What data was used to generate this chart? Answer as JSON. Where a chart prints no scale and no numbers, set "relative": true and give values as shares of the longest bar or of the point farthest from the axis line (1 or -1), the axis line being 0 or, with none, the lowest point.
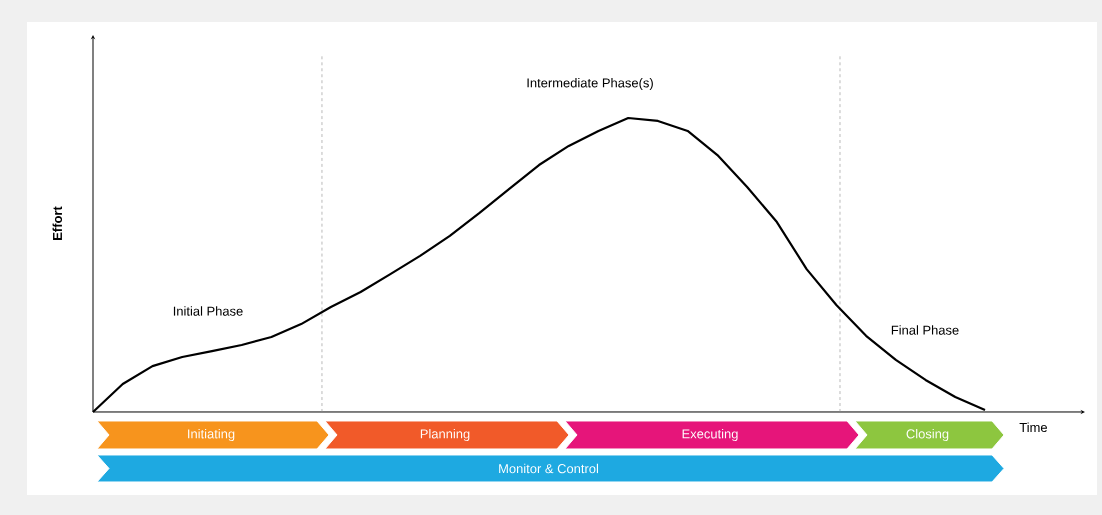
{
  "chart_data": [
    {
      "type": "line",
      "relative": true,
      "color": "#000000",
      "xlabel": "Time",
      "ylabel": "Effort",
      "categories": [
        null,
        null,
        null,
        null,
        null,
        null,
        null,
        null,
        null,
        null,
        null,
        null,
        null,
        null,
        null,
        null,
        null,
        null,
        null,
        null,
        null,
        null,
        null,
        null,
        null,
        null,
        null,
        null,
        null,
        null,
        null
      ],
      "values": [
        0,
        0.095,
        0.156,
        0.187,
        0.207,
        0.228,
        0.255,
        0.299,
        0.357,
        0.408,
        0.469,
        0.531,
        0.599,
        0.677,
        0.759,
        0.84,
        0.905,
        0.956,
        1,
        0.99,
        0.956,
        0.874,
        0.765,
        0.646,
        0.486,
        0.364,
        0.259,
        0.177,
        0.109,
        0.051,
        0.007
      ],
      "annotations": [
        "Initial Phase",
        "Intermediate Phase(s)",
        "Final Phase"
      ]
    },
    {
      "type": "other",
      "categories": [
        "Initiating",
        "Planning",
        "Executing",
        "Closing",
        "Monitor & Control"
      ],
      "colors": [
        "#f7941d",
        "#f15a29",
        "#e6157a",
        "#8dc63f",
        "#1ea9e1"
      ]
    }
  ]
}
